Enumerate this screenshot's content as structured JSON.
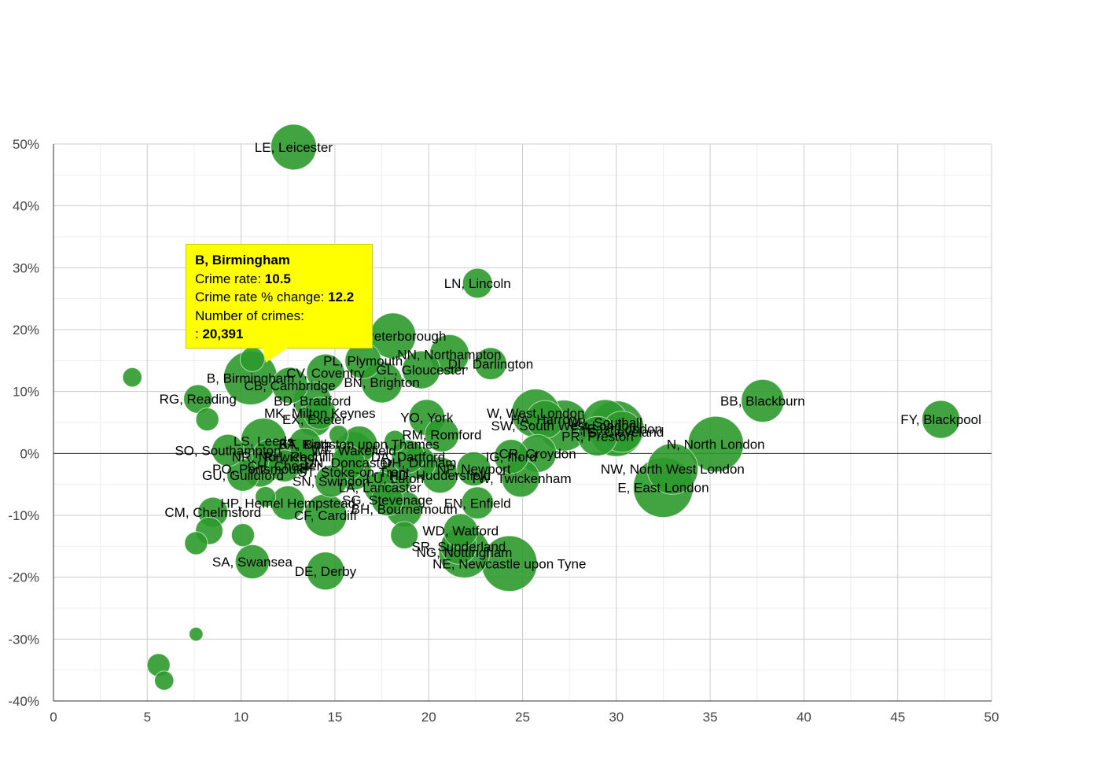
{
  "chart_data": {
    "type": "scatter",
    "subtype": "bubble",
    "xlim": [
      0,
      50
    ],
    "ylim": [
      -40,
      50
    ],
    "x_ticks": [
      "0",
      "5",
      "10",
      "15",
      "20",
      "25",
      "30",
      "35",
      "40",
      "45",
      "50"
    ],
    "y_ticks": [
      "50%",
      "40%",
      "30%",
      "20%",
      "10%",
      "0%",
      "-10%",
      "-20%",
      "-30%",
      "-40%"
    ],
    "grid": true,
    "legend": "none",
    "bubble_color": "#2c9a2c",
    "series": [
      {
        "label": "LE, Leicester",
        "x": 12.8,
        "y": 49.5,
        "size": 14000
      },
      {
        "label": "LN, Lincoln",
        "x": 22.6,
        "y": 27.5,
        "size": 5000
      },
      {
        "label": "PE, Peterborough",
        "x": 18.1,
        "y": 19.0,
        "size": 14000
      },
      {
        "label": "NN, Northampton",
        "x": 21.1,
        "y": 16.0,
        "size": 10000
      },
      {
        "label": "DL, Darlington",
        "x": 23.3,
        "y": 14.5,
        "size": 6000
      },
      {
        "label": "PL, Plymouth",
        "x": 16.5,
        "y": 15.0,
        "size": 8000
      },
      {
        "label": "GL, Gloucester",
        "x": 19.6,
        "y": 13.5,
        "size": 9000
      },
      {
        "label": "BN, Brighton",
        "x": 17.5,
        "y": 11.5,
        "size": 11000
      },
      {
        "label": "CV, Coventry",
        "x": 14.5,
        "y": 13.0,
        "size": 9000
      },
      {
        "label": "CB, Cambridge",
        "x": 12.6,
        "y": 11.0,
        "size": 8000
      },
      {
        "label": "B, Birmingham",
        "x": 10.5,
        "y": 12.2,
        "size": 20391
      },
      {
        "label": "RG, Reading",
        "x": 7.7,
        "y": 8.8,
        "size": 4500
      },
      {
        "label": "BD, Bradford",
        "x": 13.8,
        "y": 8.5,
        "size": 9000
      },
      {
        "label": "MK, Milton Keynes",
        "x": 14.2,
        "y": 6.5,
        "size": 6000
      },
      {
        "label": "EX, Exeter",
        "x": 13.9,
        "y": 5.5,
        "size": 7000
      },
      {
        "label": "BB, Blackburn",
        "x": 37.8,
        "y": 8.5,
        "size": 12000
      },
      {
        "label": "FY, Blackpool",
        "x": 47.3,
        "y": 5.5,
        "size": 9000
      },
      {
        "label": "YO, York",
        "x": 19.9,
        "y": 5.8,
        "size": 8000
      },
      {
        "label": "RM, Romford",
        "x": 20.7,
        "y": 3.0,
        "size": 7000
      },
      {
        "label": "W, West London",
        "x": 25.7,
        "y": 6.5,
        "size": 16000
      },
      {
        "label": "HA, Harrow",
        "x": 26.2,
        "y": 5.5,
        "size": 9000
      },
      {
        "label": "SW, South West London",
        "x": 27.2,
        "y": 4.5,
        "size": 18000
      },
      {
        "label": "UB, Southall",
        "x": 29.4,
        "y": 5.0,
        "size": 14000
      },
      {
        "label": "E, East London",
        "x": 30.0,
        "y": 4.0,
        "size": 22000
      },
      {
        "label": "TS, Cleveland",
        "x": 30.3,
        "y": 3.5,
        "size": 11000
      },
      {
        "label": "PR, Preston",
        "x": 29.0,
        "y": 2.8,
        "size": 10000
      },
      {
        "label": "N, North London",
        "x": 35.3,
        "y": 1.5,
        "size": 22000
      },
      {
        "label": "NW, North West London",
        "x": 33.0,
        "y": -2.5,
        "size": 18000
      },
      {
        "label": "E, East London",
        "x": 32.5,
        "y": -5.5,
        "size": 26000
      },
      {
        "label": "IG, Ilford",
        "x": 24.4,
        "y": -0.5,
        "size": 7000
      },
      {
        "label": "CR, Croydon",
        "x": 25.8,
        "y": 0.0,
        "size": 9000
      },
      {
        "label": "TW, Twickenham",
        "x": 24.9,
        "y": -4.0,
        "size": 9000
      },
      {
        "label": "NP, Newport",
        "x": 22.4,
        "y": -2.5,
        "size": 7000
      },
      {
        "label": "HD, Huddersfield",
        "x": 20.6,
        "y": -3.5,
        "size": 8000
      },
      {
        "label": "EN, Enfield",
        "x": 22.6,
        "y": -8.0,
        "size": 6000
      },
      {
        "label": "DH, Durham",
        "x": 19.5,
        "y": -1.5,
        "size": 6500
      },
      {
        "label": "DA, Dartford",
        "x": 18.9,
        "y": -0.5,
        "size": 6500
      },
      {
        "label": "LU, Luton",
        "x": 18.2,
        "y": -4.0,
        "size": 7000
      },
      {
        "label": "LA, Lancaster",
        "x": 17.4,
        "y": -5.5,
        "size": 6000
      },
      {
        "label": "SG, Stevenage",
        "x": 17.8,
        "y": -7.5,
        "size": 6000
      },
      {
        "label": "BH, Bournemouth",
        "x": 18.7,
        "y": -9.0,
        "size": 8000
      },
      {
        "label": "WD, Watford",
        "x": 21.7,
        "y": -12.5,
        "size": 7000
      },
      {
        "label": "SR, Sunderland",
        "x": 21.6,
        "y": -15.0,
        "size": 8000
      },
      {
        "label": "NG, Nottingham",
        "x": 21.9,
        "y": -16.0,
        "size": 18000
      },
      {
        "label": "NE, Newcastle upon Tyne",
        "x": 24.3,
        "y": -17.8,
        "size": 22000
      },
      {
        "label": "DE, Derby",
        "x": 14.5,
        "y": -19.0,
        "size": 9000
      },
      {
        "label": "SA, Swansea",
        "x": 10.6,
        "y": -17.5,
        "size": 7000
      },
      {
        "label": "CF, Cardiff",
        "x": 14.5,
        "y": -10.0,
        "size": 12000
      },
      {
        "label": "HP, Hemel Hempstead",
        "x": 12.5,
        "y": -8.0,
        "size": 7000
      },
      {
        "label": "CM, Chelmsford",
        "x": 8.5,
        "y": -9.5,
        "size": 5000
      },
      {
        "label": "GU, Guildford",
        "x": 10.1,
        "y": -3.5,
        "size": 6000
      },
      {
        "label": "PO, Portsmouth",
        "x": 11.0,
        "y": -2.5,
        "size": 8000
      },
      {
        "label": "CH, Chester",
        "x": 12.3,
        "y": -2.0,
        "size": 6000
      },
      {
        "label": "SN, Swindon",
        "x": 14.8,
        "y": -4.5,
        "size": 6000
      },
      {
        "label": "ST, Stoke-on-Trent",
        "x": 16.0,
        "y": -3.0,
        "size": 8000
      },
      {
        "label": "DN, Doncaster",
        "x": 15.7,
        "y": -1.5,
        "size": 7000
      },
      {
        "label": "WF, Wakefield",
        "x": 16.0,
        "y": 0.5,
        "size": 9000
      },
      {
        "label": "SO, Southampton",
        "x": 9.3,
        "y": 0.5,
        "size": 6000
      },
      {
        "label": "NR, Norwich",
        "x": 11.5,
        "y": -0.5,
        "size": 7000
      },
      {
        "label": "RH, Redhill",
        "x": 13.0,
        "y": -0.5,
        "size": 8000
      },
      {
        "label": "BA, Bath",
        "x": 13.4,
        "y": 1.5,
        "size": 6000
      },
      {
        "label": "LS, Leeds",
        "x": 11.2,
        "y": 2.0,
        "size": 14000
      },
      {
        "label": "KT, Kingston upon Thames",
        "x": 16.3,
        "y": 1.5,
        "size": 8000
      },
      {
        "label": "",
        "x": 4.2,
        "y": 12.3,
        "size": 1500
      },
      {
        "label": "",
        "x": 8.2,
        "y": 5.5,
        "size": 2500
      },
      {
        "label": "",
        "x": 10.6,
        "y": 15.2,
        "size": 3000
      },
      {
        "label": "",
        "x": 8.3,
        "y": -12.5,
        "size": 4000
      },
      {
        "label": "",
        "x": 7.6,
        "y": -14.5,
        "size": 2500
      },
      {
        "label": "",
        "x": 10.1,
        "y": -13.2,
        "size": 2500
      },
      {
        "label": "",
        "x": 11.3,
        "y": -7.0,
        "size": 1800
      },
      {
        "label": "",
        "x": 18.7,
        "y": -13.2,
        "size": 4000
      },
      {
        "label": "",
        "x": 18.2,
        "y": 2.0,
        "size": 2000
      },
      {
        "label": "",
        "x": 15.2,
        "y": 3.0,
        "size": 1500
      },
      {
        "label": "",
        "x": 7.6,
        "y": -29.2,
        "size": 500
      },
      {
        "label": "",
        "x": 5.6,
        "y": -34.2,
        "size": 2500
      },
      {
        "label": "",
        "x": 5.9,
        "y": -36.7,
        "size": 1500
      }
    ]
  },
  "tooltip": {
    "title": "B, Birmingham",
    "rate_label": "Crime rate: ",
    "rate_value": "10.5",
    "change_label": "Crime rate % change: ",
    "change_value": "12.2",
    "count_label": "Number of crimes:",
    "count_prefix": ": ",
    "count_value": "20,391"
  }
}
